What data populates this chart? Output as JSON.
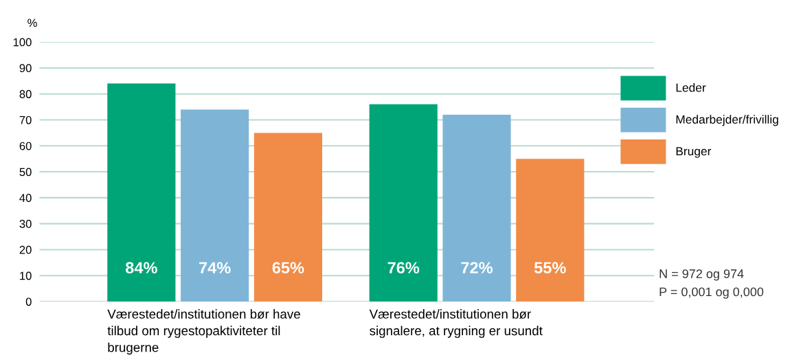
{
  "chart_data": {
    "type": "bar",
    "ylabel": "%",
    "categories": [
      "Værestedet/institutionen bør have\ntilbud om rygestopaktiviteter til\nbrugerne",
      "Værestedet/institutionen bør\nsignalere, at rygning er usundt"
    ],
    "series": [
      {
        "name": "Leder",
        "color": "#00a577",
        "values": [
          84,
          76
        ],
        "value_labels": [
          "84%",
          "76%"
        ]
      },
      {
        "name": "Medarbejder/frivillig",
        "color": "#7eb5d7",
        "values": [
          74,
          72
        ],
        "value_labels": [
          "74%",
          "72%"
        ]
      },
      {
        "name": "Bruger",
        "color": "#f08c48",
        "values": [
          65,
          55
        ],
        "value_labels": [
          "65%",
          "55%"
        ]
      }
    ],
    "ylim": [
      0,
      100
    ],
    "yticks": [
      0,
      10,
      20,
      30,
      40,
      50,
      60,
      70,
      80,
      90,
      100
    ],
    "grid": "y",
    "legend": "right",
    "annotations": [
      "N = 972 og 974",
      "P = 0,001 og 0,000"
    ]
  }
}
